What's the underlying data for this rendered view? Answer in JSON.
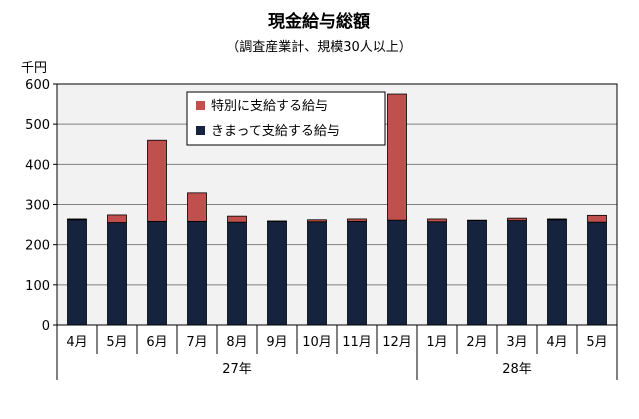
{
  "chart_data": {
    "type": "bar",
    "stacked": true,
    "title": "現金給与総額",
    "subtitle": "（調査産業計、規模30人以上）",
    "ylabel": "千円",
    "xlabel": "",
    "ylim": [
      0,
      600
    ],
    "yticks": [
      0,
      100,
      200,
      300,
      400,
      500,
      600
    ],
    "grid": true,
    "legend_position": "top-center",
    "categories": [
      "4月",
      "5月",
      "6月",
      "7月",
      "8月",
      "9月",
      "10月",
      "11月",
      "12月",
      "1月",
      "2月",
      "3月",
      "4月",
      "5月"
    ],
    "year_groups": [
      {
        "label": "27年",
        "span": 9
      },
      {
        "label": "28年",
        "span": 5
      }
    ],
    "series": [
      {
        "name": "きまって支給する給与",
        "color": "#15233f",
        "values": [
          262,
          255,
          258,
          258,
          256,
          258,
          257,
          258,
          261,
          257,
          260,
          260,
          262,
          256
        ]
      },
      {
        "name": "特別に支給する給与",
        "color": "#c0504d",
        "values": [
          2,
          19,
          202,
          71,
          15,
          1,
          5,
          6,
          314,
          7,
          1,
          6,
          2,
          17
        ]
      }
    ]
  }
}
